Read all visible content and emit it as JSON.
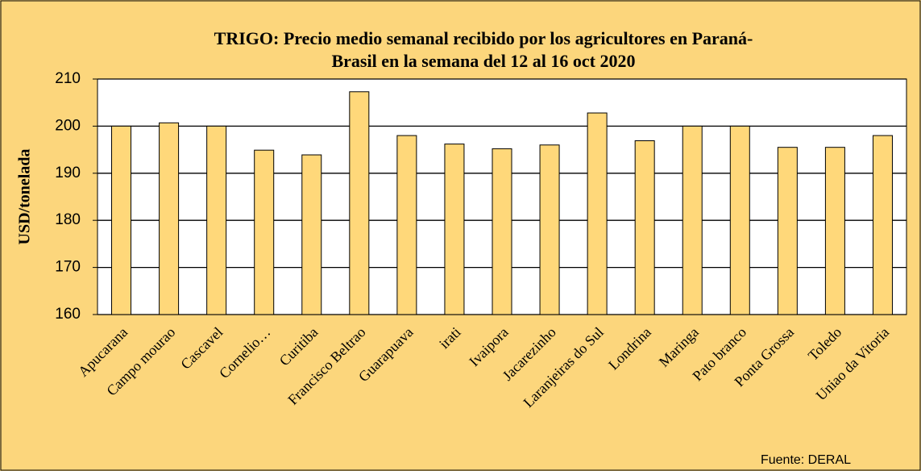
{
  "chart_data": {
    "type": "bar",
    "title": [
      "TRIGO: Precio medio semanal recibido por los agricultores en Paraná-",
      "Brasil en la semana del 12 al 16 oct 2020"
    ],
    "y_label": "USD/tonelada",
    "annotation": "Fuente:  DERAL",
    "categories": [
      "Apucarana",
      "Campo mourao",
      "Cascavel",
      "Cornelio…",
      "Curitiba",
      "Francisco Beltrao",
      "Guarapuava",
      "irati",
      "Ivaipora",
      "Jacarezinho",
      "Laranjeiras do Sul",
      "Londrina",
      "Maringa",
      "Pato branco",
      "Ponta Grossa",
      "Toledo",
      "Uniao da Vitoria"
    ],
    "values": [
      200,
      200.7,
      200,
      194.9,
      193.9,
      207.3,
      198,
      196.2,
      195.2,
      196,
      202.8,
      196.9,
      200,
      200,
      195.5,
      195.5,
      198
    ],
    "color": "#ffd87a",
    "ylim": [
      160,
      210
    ],
    "yticks": [
      160,
      170,
      180,
      190,
      200,
      210
    ],
    "grid": true
  }
}
